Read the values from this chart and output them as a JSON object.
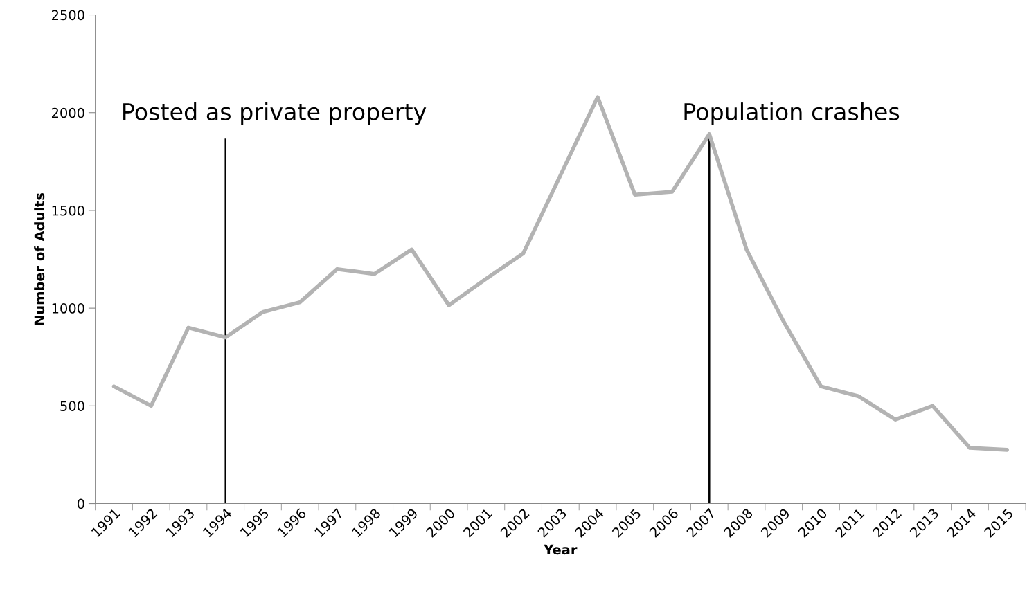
{
  "chart_data": {
    "type": "line",
    "xlabel": "Year",
    "ylabel": "Number of Adults",
    "categories": [
      "1991",
      "1992",
      "1993",
      "1994",
      "1995",
      "1996",
      "1997",
      "1998",
      "1999",
      "2000",
      "2001",
      "2002",
      "2003",
      "2004",
      "2005",
      "2006",
      "2007",
      "2008",
      "2009",
      "2010",
      "2011",
      "2012",
      "2013",
      "2014",
      "2015"
    ],
    "series": [
      {
        "color": "#b3b3b3",
        "values": [
          600,
          500,
          900,
          850,
          980,
          1030,
          1200,
          1175,
          1300,
          1015,
          1150,
          1280,
          1680,
          2080,
          1580,
          1595,
          1890,
          1300,
          930,
          600,
          550,
          430,
          500,
          285,
          275
        ]
      }
    ],
    "ylim": [
      0,
      2500
    ],
    "yticks": [
      0,
      500,
      1000,
      1500,
      2000,
      2500
    ],
    "grid": false,
    "legend": false,
    "marker": "none",
    "line_style": "solid",
    "ref_lines": [
      {
        "axis": "x",
        "value": "1994",
        "label": "Posted as private property",
        "color": "#000000"
      },
      {
        "axis": "x",
        "value": "2007",
        "label": "Population crashes",
        "color": "#000000"
      }
    ]
  }
}
